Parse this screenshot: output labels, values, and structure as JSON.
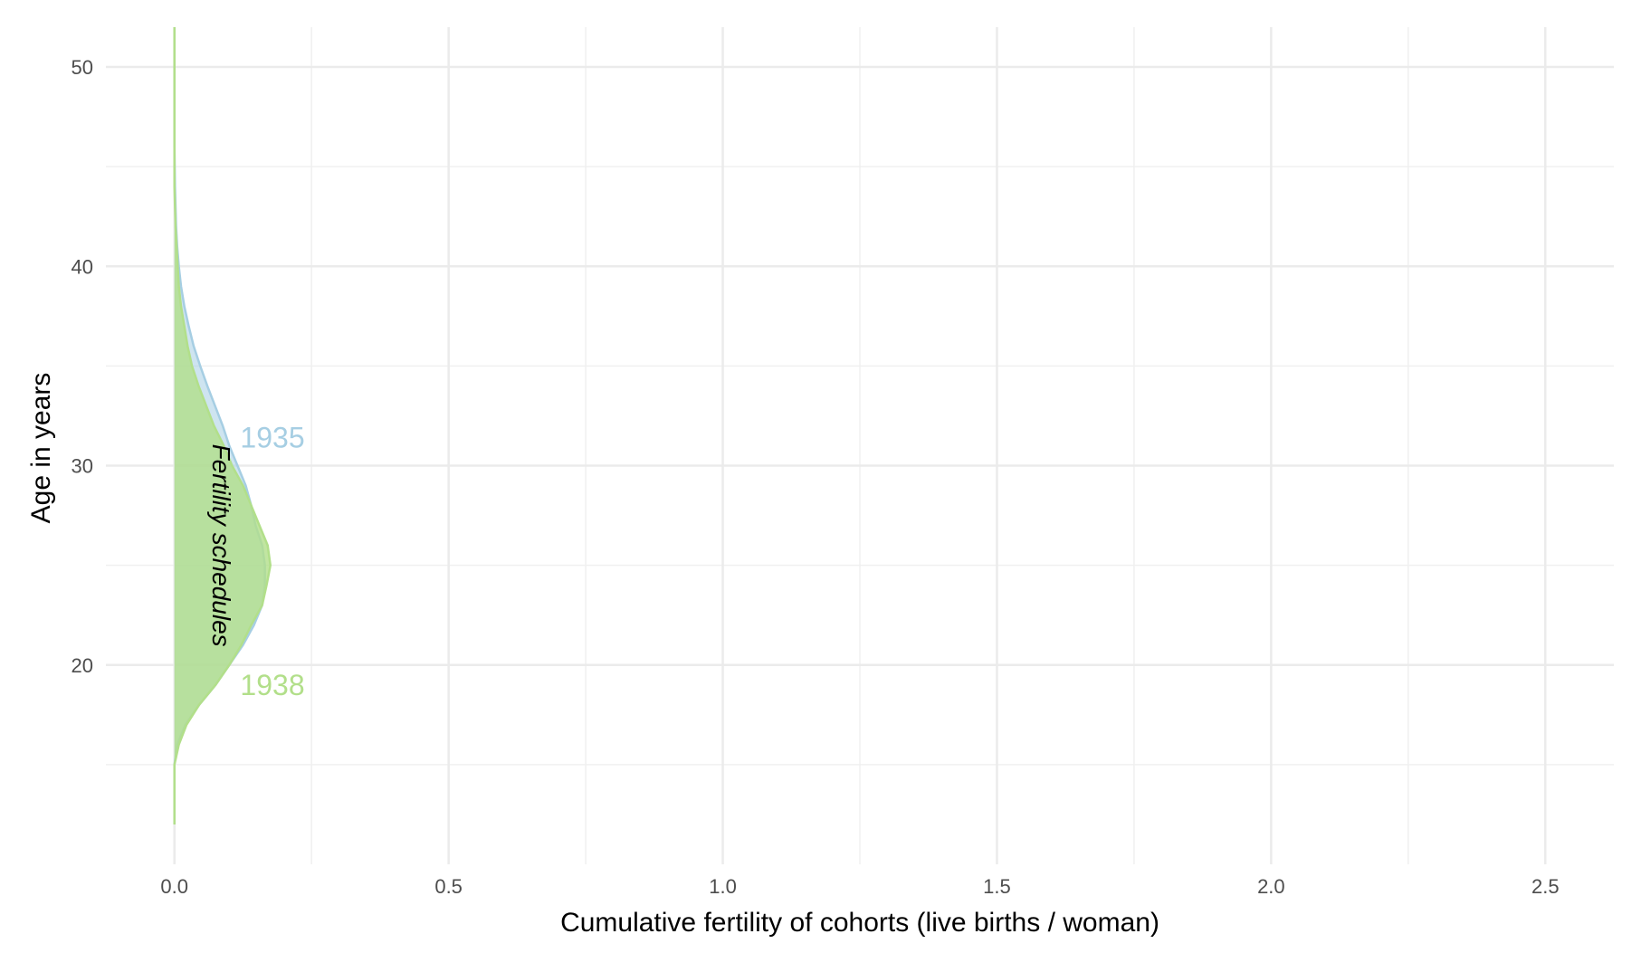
{
  "chart_data": {
    "type": "area",
    "title": "",
    "xlabel": "Cumulative fertility of cohorts (live births / woman)",
    "ylabel": "Age in years",
    "xlim": [
      -0.125,
      2.625
    ],
    "ylim": [
      10,
      52
    ],
    "x_ticks": [
      0.0,
      0.5,
      1.0,
      1.5,
      2.0,
      2.5
    ],
    "x_tick_labels": [
      "0.0",
      "0.5",
      "1.0",
      "1.5",
      "2.0",
      "2.5"
    ],
    "y_ticks": [
      20,
      30,
      40,
      50
    ],
    "y_tick_labels": [
      "20",
      "30",
      "40",
      "50"
    ],
    "grid": true,
    "annotation": "Fertility schedules",
    "series": [
      {
        "name": "1935",
        "color": "#a6cee3",
        "fill_opacity": 0.55,
        "label_pos": {
          "x": 0.12,
          "y": 31.4
        },
        "points": [
          [
            0.0,
            12
          ],
          [
            0.0,
            15
          ],
          [
            0.005,
            16
          ],
          [
            0.02,
            17
          ],
          [
            0.045,
            18
          ],
          [
            0.075,
            19
          ],
          [
            0.1,
            20
          ],
          [
            0.125,
            21
          ],
          [
            0.145,
            22
          ],
          [
            0.16,
            23
          ],
          [
            0.165,
            24
          ],
          [
            0.165,
            25
          ],
          [
            0.16,
            26
          ],
          [
            0.148,
            27
          ],
          [
            0.14,
            28
          ],
          [
            0.13,
            29
          ],
          [
            0.115,
            30
          ],
          [
            0.1,
            31
          ],
          [
            0.088,
            32
          ],
          [
            0.074,
            33
          ],
          [
            0.06,
            34
          ],
          [
            0.047,
            35
          ],
          [
            0.035,
            36
          ],
          [
            0.026,
            37
          ],
          [
            0.018,
            38
          ],
          [
            0.012,
            39
          ],
          [
            0.008,
            40
          ],
          [
            0.005,
            41
          ],
          [
            0.003,
            42
          ],
          [
            0.002,
            43
          ],
          [
            0.001,
            44
          ],
          [
            0.0,
            46
          ],
          [
            0.0,
            48
          ],
          [
            0.0,
            50
          ],
          [
            0.0,
            52
          ]
        ]
      },
      {
        "name": "1938",
        "color": "#b2df8a",
        "fill_opacity": 0.8,
        "label_pos": {
          "x": 0.12,
          "y": 19.0
        },
        "points": [
          [
            0.0,
            12
          ],
          [
            0.0,
            15
          ],
          [
            0.008,
            16
          ],
          [
            0.022,
            17
          ],
          [
            0.045,
            18
          ],
          [
            0.075,
            19
          ],
          [
            0.1,
            20
          ],
          [
            0.122,
            21
          ],
          [
            0.14,
            22
          ],
          [
            0.16,
            23
          ],
          [
            0.168,
            24
          ],
          [
            0.175,
            25
          ],
          [
            0.17,
            26
          ],
          [
            0.155,
            27
          ],
          [
            0.14,
            28
          ],
          [
            0.125,
            29
          ],
          [
            0.105,
            30
          ],
          [
            0.09,
            31
          ],
          [
            0.072,
            32
          ],
          [
            0.058,
            33
          ],
          [
            0.044,
            34
          ],
          [
            0.032,
            35
          ],
          [
            0.024,
            36
          ],
          [
            0.018,
            37
          ],
          [
            0.012,
            38
          ],
          [
            0.008,
            39
          ],
          [
            0.006,
            40
          ],
          [
            0.004,
            41
          ],
          [
            0.002,
            42
          ],
          [
            0.001,
            43
          ],
          [
            0.0,
            44
          ],
          [
            0.0,
            46
          ],
          [
            0.0,
            48
          ],
          [
            0.0,
            50
          ],
          [
            0.0,
            52
          ]
        ]
      }
    ]
  }
}
